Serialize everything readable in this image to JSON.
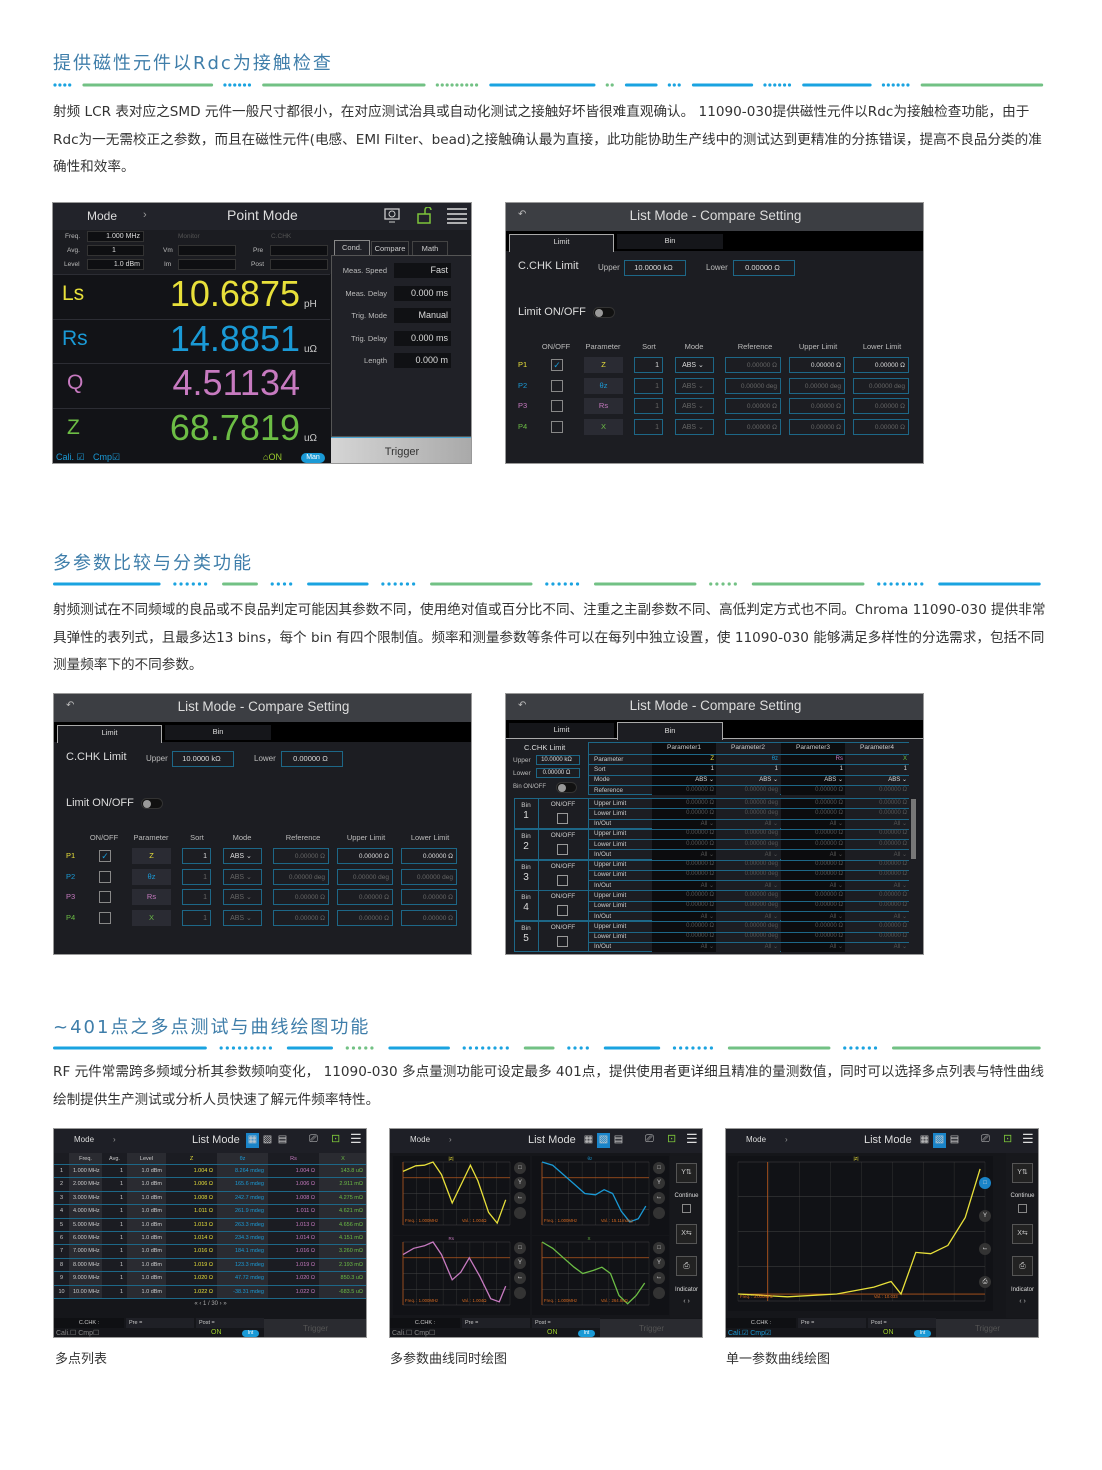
{
  "sections": [
    {
      "title": "提供磁性元件以Rdc为接触检查",
      "paragraph": "射频 LCR 表对应之SMD 元件一般尺寸都很小，在对应测试治具或自动化测试之接触好坏皆很难直观确认。 11090-030提供磁性元件以Rdc为接触检查功能，由于Rdc为一无需校正之参数，而且在磁性元件(电感、EMI Filter、bead)之接触确认最为直接，此功能协助生产线中的测试达到更精准的分拣错误，提高不良品分类的准确性和效率。"
    },
    {
      "title": "多参数比较与分类功能",
      "paragraph": "射频测试在不同频域的良品或不良品判定可能因其参数不同，使用绝对值或百分比不同、注重之主副参数不同、高低判定方式也不同。Chroma 11090-030 提供非常具弹性的表列式，且最多达13 bins，每个 bin 有四个限制值。频率和测量参数等条件可以在每列中独立设置，使 11090-030 能够满足多样性的分选需求，包括不同测量频率下的不同参数。"
    },
    {
      "title": "~401点之多点测试与曲线绘图功能",
      "paragraph": "RF 元件常需跨多频域分析其参数频响变化， 11090-030 多点量测功能可设定最多 401点，提供使用者更详细且精准的量测数值，同时可以选择多点列表与特性曲线绘制提供生产测试或分析人员快速了解元件频率特性。"
    }
  ],
  "colors": {
    "title": "#3f7eaa",
    "blue": "#1aa3e0",
    "green": "#72c184",
    "param1": "#e8e03a",
    "param2": "#1a9ad6",
    "param3": "#c77ac0",
    "param4": "#6cbd45"
  },
  "point_mode": {
    "mode_label": "Mode",
    "mode_arrow": "›",
    "title": "Point Mode",
    "icons": [
      "monitor-icon",
      "unlock-icon",
      "menu-icon"
    ],
    "freq_label": "Freq.",
    "freq": "1.000 MHz",
    "avg_label": "Avg.",
    "avg": "1",
    "level_label": "Level",
    "level": "1.0 dBm",
    "monitor_label": "Monitor",
    "vm_label": "Vm",
    "im_label": "Im",
    "cchk_label": "C.CHK",
    "pre_label": "Pre",
    "post_label": "Post",
    "readings": [
      {
        "param": "Ls",
        "value": "10.6875",
        "unit": "pH",
        "color": "#e8e03a"
      },
      {
        "param": "Rs",
        "value": "14.8851",
        "unit": "uΩ",
        "color": "#1a9ad6"
      },
      {
        "param": "Q",
        "value": "4.51134",
        "unit": "",
        "color": "#c77ac0"
      },
      {
        "param": "Z",
        "value": "68.7819",
        "unit": "uΩ",
        "color": "#6cbd45"
      }
    ],
    "tabs": [
      "Cond.",
      "Compare",
      "Math"
    ],
    "settings": [
      {
        "label": "Meas. Speed",
        "value": "Fast"
      },
      {
        "label": "Meas. Delay",
        "value": "0.000 ms"
      },
      {
        "label": "Trig. Mode",
        "value": "Manual"
      },
      {
        "label": "Trig. Delay",
        "value": "0.000 ms"
      },
      {
        "label": "Length",
        "value": "0.000 m"
      }
    ],
    "trigger": "Trigger",
    "cali": "Cali.",
    "cmp": "Cmp",
    "on": "ON",
    "trig_mode_badge": "Man"
  },
  "compare_setting": {
    "title": "List Mode - Compare Setting",
    "tabs": [
      "Limit",
      "Bin"
    ],
    "cchk_limit": "C.CHK Limit",
    "upper_label": "Upper",
    "upper": "10.0000 kΩ",
    "lower_label": "Lower",
    "lower": "0.00000 Ω",
    "limit_onoff": "Limit ON/OFF",
    "limit_on": false,
    "headers": [
      "ON/OFF",
      "Parameter",
      "Sort",
      "Mode",
      "Reference",
      "Upper Limit",
      "Lower Limit"
    ],
    "rows": [
      {
        "id": "P1",
        "checked": true,
        "param": "Z",
        "sort": "1",
        "mode": "ABS",
        "ref": "0.00000 Ω",
        "upper": "0.00000 Ω",
        "lower": "0.00000 Ω",
        "color": "#e8e03a"
      },
      {
        "id": "P2",
        "checked": false,
        "param": "θz",
        "sort": "1",
        "mode": "ABS",
        "ref": "0.00000 deg",
        "upper": "0.00000 deg",
        "lower": "0.00000 deg",
        "color": "#1a9ad6"
      },
      {
        "id": "P3",
        "checked": false,
        "param": "Rs",
        "sort": "1",
        "mode": "ABS",
        "ref": "0.00000 Ω",
        "upper": "0.00000 Ω",
        "lower": "0.00000 Ω",
        "color": "#c77ac0"
      },
      {
        "id": "P4",
        "checked": false,
        "param": "X",
        "sort": "1",
        "mode": "ABS",
        "ref": "0.00000 Ω",
        "upper": "0.00000 Ω",
        "lower": "0.00000 Ω",
        "color": "#6cbd45"
      }
    ]
  },
  "bin_setting": {
    "title": "List Mode - Compare Setting",
    "tabs": [
      "Limit",
      "Bin"
    ],
    "cchk_limit": "C.CHK Limit",
    "upper_label": "Upper",
    "upper": "10.0000 kΩ",
    "lower_label": "Lower",
    "lower": "0.00000 Ω",
    "bin_onoff": "Bin ON/OFF",
    "columns": [
      "Parameter1",
      "Parameter2",
      "Parameter3",
      "Parameter4"
    ],
    "param_rows": [
      {
        "label": "Parameter",
        "values": [
          "Z",
          "θz",
          "Rs",
          "X"
        ]
      },
      {
        "label": "Sort",
        "values": [
          "1",
          "1",
          "1",
          "1"
        ]
      },
      {
        "label": "Mode",
        "values": [
          "ABS ⌄",
          "ABS ⌄",
          "ABS ⌄",
          "ABS ⌄"
        ]
      },
      {
        "label": "Reference",
        "values": [
          "0.00000 Ω",
          "0.00000 deg",
          "0.00000 Ω",
          "0.00000 Ω"
        ]
      }
    ],
    "bin_label": "Bin",
    "onoff_label": "ON/OFF",
    "bins": [
      "1",
      "2",
      "3",
      "4",
      "5"
    ],
    "bin_rows": [
      {
        "label": "Upper Limit",
        "values": [
          "0.00000 Ω",
          "0.00000 deg",
          "0.00000 Ω",
          "0.00000 Ω"
        ]
      },
      {
        "label": "Lower Limit",
        "values": [
          "0.00000 Ω",
          "0.00000 deg",
          "0.00000 Ω",
          "0.00000 Ω"
        ]
      },
      {
        "label": "In/Out",
        "values": [
          "All ⌄",
          "All ⌄",
          "All ⌄",
          "All ⌄"
        ]
      }
    ]
  },
  "list_mode": {
    "mode_label": "Mode",
    "mode_arrow": "›",
    "title": "List Mode",
    "headers": [
      "",
      "Freq.",
      "Avg.",
      "Level",
      "Z",
      "θz",
      "Rs",
      "X"
    ],
    "rows": [
      [
        "1",
        "1.000 MHz",
        "1",
        "1.0 dBm",
        "1.004 Ω",
        "8.264 mdeg",
        "1.004 Ω",
        "143.8 uΩ"
      ],
      [
        "2",
        "2.000 MHz",
        "1",
        "1.0 dBm",
        "1.006 Ω",
        "165.6 mdeg",
        "1.006 Ω",
        "2.911 mΩ"
      ],
      [
        "3",
        "3.000 MHz",
        "1",
        "1.0 dBm",
        "1.008 Ω",
        "242.7 mdeg",
        "1.008 Ω",
        "4.275 mΩ"
      ],
      [
        "4",
        "4.000 MHz",
        "1",
        "1.0 dBm",
        "1.011 Ω",
        "261.9 mdeg",
        "1.011 Ω",
        "4.621 mΩ"
      ],
      [
        "5",
        "5.000 MHz",
        "1",
        "1.0 dBm",
        "1.013 Ω",
        "263.3 mdeg",
        "1.013 Ω",
        "4.656 mΩ"
      ],
      [
        "6",
        "6.000 MHz",
        "1",
        "1.0 dBm",
        "1.014 Ω",
        "234.3 mdeg",
        "1.014 Ω",
        "4.151 mΩ"
      ],
      [
        "7",
        "7.000 MHz",
        "1",
        "1.0 dBm",
        "1.016 Ω",
        "184.1 mdeg",
        "1.016 Ω",
        "3.260 mΩ"
      ],
      [
        "8",
        "8.000 MHz",
        "1",
        "1.0 dBm",
        "1.019 Ω",
        "123.3 mdeg",
        "1.019 Ω",
        "2.193 mΩ"
      ],
      [
        "9",
        "9.000 MHz",
        "1",
        "1.0 dBm",
        "1.020 Ω",
        "47.72 mdeg",
        "1.020 Ω",
        "850.3 uΩ"
      ],
      [
        "10",
        "10.00 MHz",
        "1",
        "1.0 dBm",
        "1.022 Ω",
        "-38.31 mdeg",
        "1.022 Ω",
        "-683.5 uΩ"
      ]
    ],
    "pagination": "«   ‹   1 / 30   ›   »",
    "cchk": "C.CHK :",
    "pre": "Pre =",
    "post": "Post =",
    "trigger": "Trigger",
    "cali": "Cali.",
    "cmp": "Cmp",
    "on": "ON",
    "trig_mode_badge": "Int",
    "continue": "Continue",
    "indicator": "Indicator",
    "indicator_arrows": "‹   ›"
  },
  "plots": {
    "multi": [
      {
        "name": "|Z|",
        "freq": "Freq. : 1.000MHz",
        "val": "Val. : 1.004Ω",
        "color": "#e8e03a"
      },
      {
        "name": "θz",
        "freq": "Freq. : 1.000MHz",
        "val": "Val. : 15.11mdeg",
        "color": "#1a9ad6"
      },
      {
        "name": "Rs",
        "freq": "Freq. : 1.000MHz",
        "val": "Val. : 1.004Ω",
        "color": "#c77ac0"
      },
      {
        "name": "X",
        "freq": "Freq. : 1.000MHz",
        "val": "Val. : 264.8uΩ",
        "color": "#6cbd45"
      }
    ],
    "single": {
      "name": "|Z|",
      "freq": "Freq. : 3.000MHz",
      "val": "Val. : 10.033",
      "color": "#e8e03a"
    }
  },
  "captions": [
    "多点列表",
    "多参数曲线同时绘图",
    "单一参数曲线绘图"
  ]
}
